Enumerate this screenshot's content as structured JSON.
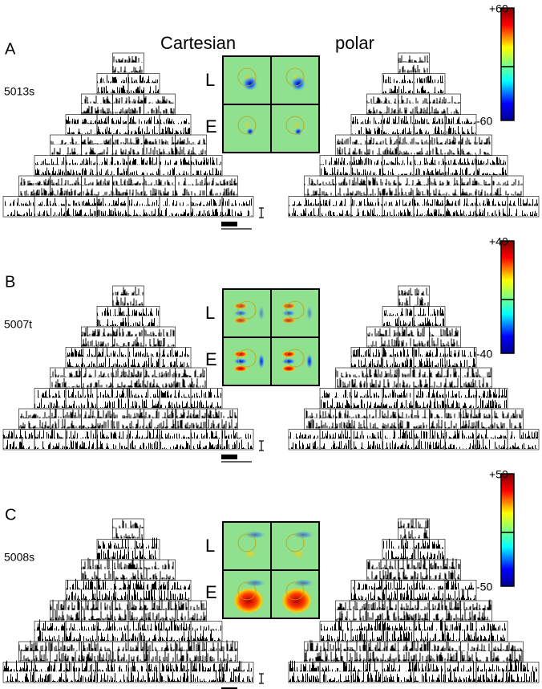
{
  "header": {
    "cartesian": "Cartesian",
    "polar": "polar"
  },
  "panels": [
    {
      "label": "A",
      "cell": "5013s",
      "rows": [
        "L",
        "E"
      ],
      "scale_max": "+60",
      "scale_min": "-60"
    },
    {
      "label": "B",
      "cell": "5007t",
      "rows": [
        "L",
        "E"
      ],
      "scale_max": "+40",
      "scale_min": "-40"
    },
    {
      "label": "C",
      "cell": "5008s",
      "rows": [
        "L",
        "E"
      ],
      "scale_max": "+50",
      "scale_min": "-50"
    }
  ]
}
